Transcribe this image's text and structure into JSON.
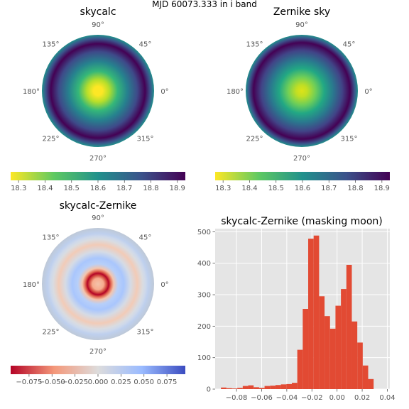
{
  "figure_title": "MJD 60073.333 in i band",
  "chart_data": [
    {
      "type": "heatmap",
      "projection": "polar",
      "title": "skycalc",
      "angle_labels": [
        "90°",
        "45°",
        "0°",
        "315°",
        "270°",
        "225°",
        "180°",
        "135°"
      ],
      "colormap": "viridis_r",
      "colorbar": {
        "range": [
          18.27,
          18.93
        ],
        "ticks": [
          "18.3",
          "18.4",
          "18.5",
          "18.6",
          "18.7",
          "18.8",
          "18.9"
        ]
      }
    },
    {
      "type": "heatmap",
      "projection": "polar",
      "title": "Zernike sky",
      "angle_labels": [
        "90°",
        "45°",
        "0°",
        "315°",
        "270°",
        "225°",
        "180°",
        "135°"
      ],
      "colormap": "viridis_r",
      "colorbar": {
        "range": [
          18.27,
          18.93
        ],
        "ticks": [
          "18.3",
          "18.4",
          "18.5",
          "18.6",
          "18.7",
          "18.8",
          "18.9"
        ]
      }
    },
    {
      "type": "heatmap",
      "projection": "polar",
      "title": "skycalc-Zernike",
      "angle_labels": [
        "90°",
        "45°",
        "0°",
        "315°",
        "270°",
        "225°",
        "180°",
        "135°"
      ],
      "colormap": "coolwarm_r",
      "colorbar": {
        "range": [
          -0.095,
          0.095
        ],
        "ticks": [
          "−0.075",
          "−0.050",
          "−0.025",
          "0.000",
          "0.025",
          "0.050",
          "0.075"
        ]
      }
    },
    {
      "type": "bar",
      "subtype": "histogram",
      "title": "skycalc-Zernike (masking moon)",
      "xlim": [
        -0.097,
        0.042
      ],
      "ylim": [
        0,
        510
      ],
      "xticks": [
        "−0.08",
        "−0.06",
        "−0.04",
        "−0.02",
        "0.00",
        "0.02",
        "0.04"
      ],
      "yticks": [
        "0",
        "100",
        "200",
        "300",
        "400",
        "500"
      ],
      "grid": true,
      "bin_width": 0.00434,
      "bin_edges_start": -0.0924,
      "counts": [
        5,
        3,
        2,
        4,
        10,
        12,
        6,
        4,
        10,
        11,
        13,
        15,
        16,
        20,
        125,
        255,
        478,
        488,
        295,
        232,
        192,
        265,
        318,
        395,
        215,
        148,
        75,
        32
      ],
      "bar_color": "#e24a33"
    }
  ]
}
